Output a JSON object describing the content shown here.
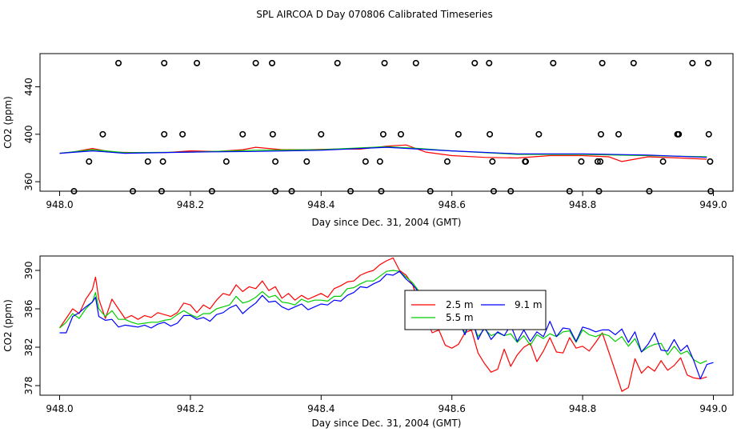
{
  "page_title": "SPL AIRCOA D  Day 070806  Calibrated Timeseries",
  "chart_data": [
    {
      "type": "line",
      "id": "top",
      "xlabel": "Day since Dec. 31, 2004 (GMT)",
      "ylabel": "CO2 (ppm)",
      "xlim": [
        947.97,
        949.03
      ],
      "ylim": [
        352,
        468
      ],
      "xticks": [
        948.0,
        948.2,
        948.4,
        948.6,
        948.8,
        949.0
      ],
      "xtick_labels": [
        "948.0",
        "948.2",
        "948.4",
        "948.6",
        "948.8",
        "949.0"
      ],
      "yticks": [
        360,
        400,
        440
      ],
      "ytick_labels": [
        "360",
        "400",
        "440"
      ],
      "series": [
        {
          "name": "2.5 m",
          "color": "#ff0000",
          "x": [
            948.0,
            948.02,
            948.05,
            948.08,
            948.12,
            948.16,
            948.2,
            948.24,
            948.28,
            948.3,
            948.34,
            948.38,
            948.42,
            948.46,
            948.5,
            948.53,
            948.56,
            948.6,
            948.65,
            948.7,
            948.75,
            948.8,
            948.84,
            948.86,
            948.9,
            948.95,
            948.99
          ],
          "y": [
            384,
            385,
            388,
            385,
            384.5,
            384.5,
            386,
            385.5,
            387,
            389,
            387,
            387,
            387.5,
            387.5,
            390,
            391,
            385,
            382,
            380.5,
            380,
            382,
            382,
            381,
            377,
            381,
            380,
            379
          ]
        },
        {
          "name": "5.5 m",
          "color": "#00cc00",
          "x": [
            948.0,
            948.05,
            948.1,
            948.2,
            948.3,
            948.4,
            948.5,
            948.55,
            948.6,
            948.7,
            948.8,
            948.9,
            948.99
          ],
          "y": [
            384,
            387,
            384.5,
            385,
            386.5,
            387,
            389.5,
            388,
            386,
            383,
            383,
            382,
            381
          ]
        },
        {
          "name": "9.1 m",
          "color": "#0000ff",
          "x": [
            948.0,
            948.05,
            948.1,
            948.2,
            948.3,
            948.4,
            948.5,
            948.55,
            948.6,
            948.7,
            948.8,
            948.9,
            948.99
          ],
          "y": [
            384,
            386,
            384,
            385,
            385.5,
            386.5,
            389,
            387.5,
            386,
            383.5,
            383.5,
            382.5,
            380.5
          ]
        }
      ],
      "markers": [
        {
          "name": "flags-high",
          "y": 460,
          "x": [
            948.09,
            948.16,
            948.21,
            948.3,
            948.325,
            948.425,
            948.497,
            948.545,
            948.635,
            948.657,
            948.755,
            948.83,
            948.878,
            948.968,
            948.992
          ]
        },
        {
          "name": "flags-mid",
          "y": 400,
          "x": [
            948.066,
            948.16,
            948.188,
            948.28,
            948.326,
            948.4,
            948.495,
            948.522,
            948.61,
            948.658,
            948.733,
            948.828,
            948.855,
            948.945,
            948.947,
            948.993
          ]
        },
        {
          "name": "flags-low",
          "y": 377,
          "x": [
            948.045,
            948.135,
            948.158,
            948.255,
            948.33,
            948.378,
            948.468,
            948.49,
            948.593,
            948.662,
            948.712,
            948.713,
            948.798,
            948.823,
            948.827,
            948.923,
            948.995
          ]
        },
        {
          "name": "flags-bottom",
          "y": 352,
          "x": [
            948.022,
            948.112,
            948.156,
            948.233,
            948.33,
            948.355,
            948.445,
            948.492,
            948.567,
            948.664,
            948.69,
            948.78,
            948.825,
            948.902,
            948.996
          ]
        }
      ]
    },
    {
      "type": "line",
      "id": "bottom",
      "xlabel": "Day since Dec. 31, 2004 (GMT)",
      "ylabel": "CO2 (ppm)",
      "xlim": [
        947.97,
        949.03
      ],
      "ylim": [
        377,
        391.5
      ],
      "xticks": [
        948.0,
        948.2,
        948.4,
        948.6,
        948.8,
        949.0
      ],
      "xtick_labels": [
        "948.0",
        "948.2",
        "948.4",
        "948.6",
        "948.8",
        "949.0"
      ],
      "yticks": [
        378,
        382,
        386,
        390
      ],
      "ytick_labels": [
        "378",
        "382",
        "386",
        "390"
      ],
      "legend": {
        "position": "center-right",
        "entries": [
          {
            "label": "2.5 m",
            "color": "#ff0000"
          },
          {
            "label": "9.1 m",
            "color": "#0000ff"
          },
          {
            "label": "5.5 m",
            "color": "#00cc00"
          }
        ]
      },
      "series": [
        {
          "name": "2.5 m",
          "color": "#ff0000",
          "x": [
            948.0,
            948.01,
            948.02,
            948.03,
            948.04,
            948.05,
            948.055,
            948.06,
            948.07,
            948.08,
            948.09,
            948.1,
            948.11,
            948.12,
            948.13,
            948.14,
            948.15,
            948.16,
            948.17,
            948.18,
            948.19,
            948.2,
            948.21,
            948.22,
            948.23,
            948.24,
            948.25,
            948.26,
            948.27,
            948.28,
            948.29,
            948.3,
            948.31,
            948.32,
            948.33,
            948.34,
            948.35,
            948.36,
            948.37,
            948.38,
            948.39,
            948.4,
            948.41,
            948.42,
            948.43,
            948.44,
            948.45,
            948.46,
            948.47,
            948.48,
            948.49,
            948.5,
            948.51,
            948.52,
            948.53,
            948.54,
            948.55,
            948.56,
            948.57,
            948.58,
            948.59,
            948.6,
            948.61,
            948.62,
            948.63,
            948.64,
            948.65,
            948.66,
            948.67,
            948.68,
            948.69,
            948.7,
            948.71,
            948.72,
            948.73,
            948.74,
            948.75,
            948.76,
            948.77,
            948.78,
            948.79,
            948.8,
            948.81,
            948.82,
            948.83,
            948.84,
            948.85,
            948.86,
            948.87,
            948.88,
            948.89,
            948.9,
            948.91,
            948.92,
            948.93,
            948.94,
            948.95,
            948.96,
            948.97,
            948.98,
            948.99
          ],
          "y": [
            384,
            385,
            386,
            385.5,
            387,
            388,
            389.3,
            387,
            385,
            387,
            386,
            385,
            385.3,
            384.9,
            385.3,
            385.1,
            385.6,
            385.4,
            385.2,
            385.6,
            386.6,
            386.4,
            385.6,
            386.4,
            386,
            386.9,
            387.6,
            387.4,
            388.5,
            387.8,
            388.3,
            388.1,
            388.9,
            387.9,
            388.3,
            387.1,
            387.6,
            386.9,
            387.4,
            387,
            387.3,
            387.6,
            387.2,
            388.1,
            388.4,
            388.8,
            388.9,
            389.5,
            389.8,
            390,
            390.6,
            391,
            391.3,
            390,
            389.5,
            388.5,
            386.5,
            385,
            383.5,
            383.8,
            382.2,
            381.9,
            382.3,
            383.5,
            383.8,
            381.4,
            380.3,
            379.4,
            379.7,
            381.8,
            380,
            381.2,
            382,
            382.4,
            380.5,
            381.6,
            383,
            381.5,
            381.4,
            383,
            381.9,
            382.1,
            381.6,
            382.5,
            383.5,
            381.5,
            379.5,
            377.4,
            377.8,
            380.8,
            379.3,
            380,
            379.5,
            380.6,
            379.6,
            380.1,
            380.9,
            379.1,
            378.8,
            378.7,
            378.9
          ]
        },
        {
          "name": "5.5 m",
          "color": "#00cc00",
          "x": [
            948.0,
            948.01,
            948.02,
            948.03,
            948.04,
            948.05,
            948.055,
            948.06,
            948.07,
            948.08,
            948.09,
            948.1,
            948.11,
            948.12,
            948.13,
            948.14,
            948.15,
            948.16,
            948.17,
            948.18,
            948.19,
            948.2,
            948.21,
            948.22,
            948.23,
            948.24,
            948.25,
            948.26,
            948.27,
            948.28,
            948.29,
            948.3,
            948.31,
            948.32,
            948.33,
            948.34,
            948.35,
            948.36,
            948.37,
            948.38,
            948.39,
            948.4,
            948.41,
            948.42,
            948.43,
            948.44,
            948.45,
            948.46,
            948.47,
            948.48,
            948.49,
            948.5,
            948.51,
            948.52,
            948.53,
            948.54,
            948.55,
            948.56,
            948.57,
            948.58,
            948.59,
            948.6,
            948.61,
            948.62,
            948.63,
            948.64,
            948.65,
            948.66,
            948.67,
            948.68,
            948.69,
            948.7,
            948.71,
            948.72,
            948.73,
            948.74,
            948.75,
            948.76,
            948.77,
            948.78,
            948.79,
            948.8,
            948.81,
            948.82,
            948.83,
            948.84,
            948.85,
            948.86,
            948.87,
            948.88,
            948.89,
            948.9,
            948.91,
            948.92,
            948.93,
            948.94,
            948.95,
            948.96,
            948.97,
            948.98,
            948.99
          ],
          "y": [
            384,
            384.6,
            385.5,
            385,
            386,
            386.7,
            387.7,
            386,
            385.2,
            385.8,
            384.9,
            384.9,
            384.6,
            384.4,
            384.5,
            384.6,
            384.6,
            384.8,
            384.9,
            385.4,
            385.8,
            385.4,
            385.1,
            385.5,
            385.5,
            386,
            386.2,
            386.4,
            387.3,
            386.6,
            386.8,
            387.2,
            387.8,
            387.2,
            387.4,
            386.7,
            386.6,
            386.4,
            387,
            386.7,
            386.9,
            386.9,
            386.8,
            387.3,
            387.3,
            388.1,
            388.2,
            388.6,
            388.9,
            388.9,
            389.4,
            389.9,
            390,
            389.9,
            389.3,
            388.7,
            387.8,
            387.2,
            386,
            386.4,
            385.2,
            384.3,
            384.8,
            383.5,
            384.9,
            383.1,
            383.9,
            383.2,
            383.5,
            383.2,
            383.4,
            382.5,
            383.2,
            382.2,
            383.3,
            382.9,
            383.4,
            383.1,
            383.6,
            383.7,
            382.5,
            383.8,
            383.3,
            383.1,
            383.4,
            383.2,
            382.6,
            383.1,
            382.1,
            382.9,
            381.5,
            382,
            382.3,
            382.4,
            381.2,
            382.1,
            381.3,
            381.6,
            380.7,
            380.3,
            380.6
          ]
        },
        {
          "name": "9.1 m",
          "color": "#0000ff",
          "x": [
            948.0,
            948.01,
            948.02,
            948.03,
            948.04,
            948.05,
            948.055,
            948.06,
            948.07,
            948.08,
            948.09,
            948.1,
            948.11,
            948.12,
            948.13,
            948.14,
            948.15,
            948.16,
            948.17,
            948.18,
            948.19,
            948.2,
            948.21,
            948.22,
            948.23,
            948.24,
            948.25,
            948.26,
            948.27,
            948.28,
            948.29,
            948.3,
            948.31,
            948.32,
            948.33,
            948.34,
            948.35,
            948.36,
            948.37,
            948.38,
            948.39,
            948.4,
            948.41,
            948.42,
            948.43,
            948.44,
            948.45,
            948.46,
            948.47,
            948.48,
            948.49,
            948.5,
            948.51,
            948.52,
            948.53,
            948.54,
            948.55,
            948.56,
            948.57,
            948.58,
            948.59,
            948.6,
            948.61,
            948.62,
            948.63,
            948.64,
            948.65,
            948.66,
            948.67,
            948.68,
            948.69,
            948.7,
            948.71,
            948.72,
            948.73,
            948.74,
            948.75,
            948.76,
            948.77,
            948.78,
            948.79,
            948.8,
            948.81,
            948.82,
            948.83,
            948.84,
            948.85,
            948.86,
            948.87,
            948.88,
            948.89,
            948.9,
            948.91,
            948.92,
            948.93,
            948.94,
            948.95,
            948.96,
            948.97,
            948.98,
            948.99,
            949.0
          ],
          "y": [
            383.5,
            383.5,
            385.2,
            385.6,
            386.2,
            386.7,
            387.2,
            385.2,
            384.8,
            384.9,
            384.1,
            384.3,
            384.2,
            384.1,
            384.3,
            384,
            384.4,
            384.6,
            384.2,
            384.5,
            385.3,
            385.3,
            384.9,
            385.1,
            384.7,
            385.4,
            385.6,
            386.1,
            386.4,
            385.5,
            386.1,
            386.6,
            387.4,
            386.7,
            386.8,
            386.2,
            385.9,
            386.2,
            386.5,
            385.9,
            386.2,
            386.5,
            386.4,
            386.9,
            386.8,
            387.4,
            387.7,
            388.3,
            388.2,
            388.6,
            388.9,
            389.6,
            389.5,
            389.9,
            389.1,
            388.5,
            387.7,
            386.7,
            385.6,
            386.3,
            384.5,
            384.1,
            384.9,
            383.3,
            385.1,
            382.8,
            384.1,
            382.8,
            383.6,
            383.2,
            384.3,
            382.6,
            383.8,
            382.6,
            383.6,
            383.1,
            384.7,
            383.1,
            384,
            383.9,
            382.6,
            384.1,
            383.9,
            383.6,
            383.8,
            383.8,
            383.3,
            383.9,
            382.5,
            383.6,
            381.5,
            382.3,
            383.5,
            381.7,
            381.6,
            382.8,
            381.6,
            382.2,
            380.6,
            378.7,
            380.2,
            380.4
          ]
        }
      ]
    }
  ]
}
